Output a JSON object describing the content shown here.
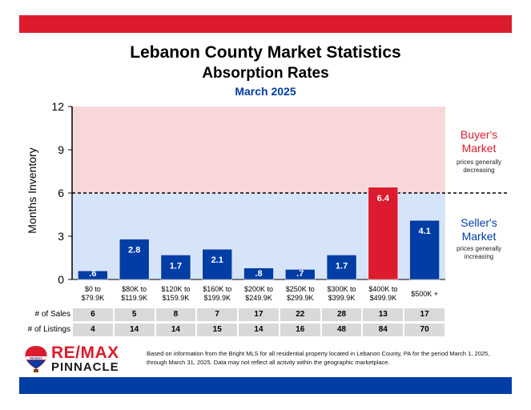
{
  "header": {
    "title": "Lebanon County Market Statistics",
    "subtitle": "Absorption Rates",
    "period": "March 2025"
  },
  "chart_data": {
    "type": "bar",
    "ylabel": "Months Inventory",
    "ylim": [
      0,
      12
    ],
    "yticks": [
      "0",
      "3",
      "6",
      "9",
      "12"
    ],
    "threshold": 6,
    "categories": [
      "$0 to\n$79.9K",
      "$80K to\n$119.9K",
      "$120K to\n$159.9K",
      "$160K to\n$199.9K",
      "$200K to\n$249.9K",
      "$250K to\n$299.9K",
      "$300K to\n$399.9K",
      "$400K to\n$499.9K",
      "$500K +"
    ],
    "values": [
      0.6,
      2.8,
      1.7,
      2.1,
      0.8,
      0.7,
      1.7,
      6.4,
      4.1
    ],
    "value_labels": [
      ".6",
      "2.8",
      "1.7",
      "2.1",
      ".8",
      ".7",
      "1.7",
      "6.4",
      "4.1"
    ],
    "colors": {
      "bar": "#003da5",
      "bar_high": "#dc1c2e",
      "buyer_zone": "#f8d7da",
      "seller_zone": "#d6e4fa"
    }
  },
  "zones": {
    "buyer_title": "Buyer's Market",
    "buyer_sub": "prices generally decreasing",
    "seller_title": "Seller's Market",
    "seller_sub": "prices generally increasing"
  },
  "table": {
    "rows": [
      {
        "label": "# of Sales",
        "values": [
          "6",
          "5",
          "8",
          "7",
          "17",
          "22",
          "28",
          "13",
          "17"
        ]
      },
      {
        "label": "# of Listings",
        "values": [
          "4",
          "14",
          "14",
          "15",
          "14",
          "16",
          "48",
          "84",
          "70"
        ]
      }
    ]
  },
  "brand": {
    "name_line1": "RE/MAX",
    "name_line2": "PINNACLE",
    "balloon_text": "RE/MAX"
  },
  "footnote": "Based on information from the Bright MLS for all residential property located in Lebanon County, PA for the period March 1, 2025, through March 31, 2025.  Data may not reflect all activity within the geographic marketplace."
}
